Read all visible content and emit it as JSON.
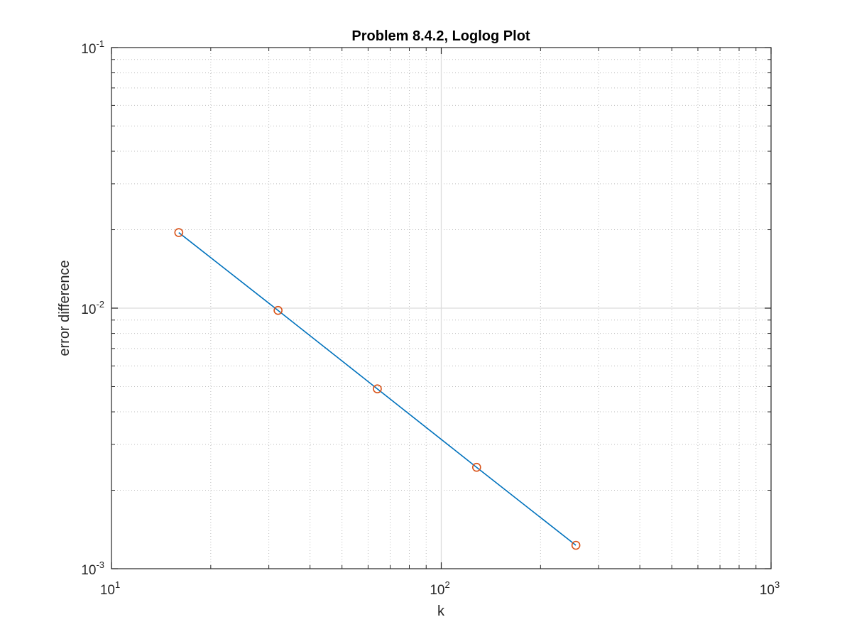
{
  "chart_data": {
    "type": "line",
    "title": "Problem 8.4.2, Loglog Plot",
    "xlabel": "k",
    "ylabel": "error difference",
    "xscale": "log",
    "yscale": "log",
    "xlim": [
      10,
      1000
    ],
    "ylim": [
      0.001,
      0.1
    ],
    "grid": true,
    "x_ticks": [
      {
        "base": "10",
        "exp": "1",
        "value": 10
      },
      {
        "base": "10",
        "exp": "2",
        "value": 100
      },
      {
        "base": "10",
        "exp": "3",
        "value": 1000
      }
    ],
    "y_ticks": [
      {
        "base": "10",
        "exp": "-3",
        "value": 0.001
      },
      {
        "base": "10",
        "exp": "-2",
        "value": 0.01
      },
      {
        "base": "10",
        "exp": "-1",
        "value": 0.1
      }
    ],
    "series": [
      {
        "x": [
          16,
          32,
          64,
          128,
          256
        ],
        "y": [
          0.0195,
          0.0098,
          0.0049,
          0.00245,
          0.00123
        ],
        "line_color": "#0072BD",
        "marker": "circle",
        "marker_color": "#D95319"
      }
    ]
  }
}
